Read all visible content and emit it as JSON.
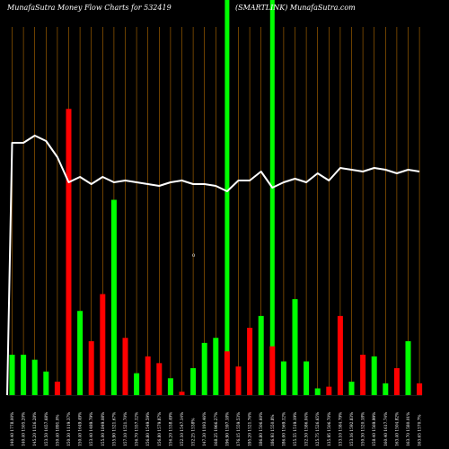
{
  "header": {
    "left": "MunafaSutra  Money Flow  Charts for 532419",
    "right": "(SMARTLINK) MunafaSutra.com"
  },
  "mid_label": "0",
  "colors": {
    "background": "#000000",
    "up": "#00ff00",
    "down": "#ff0000",
    "grid": "#b36b00",
    "line": "#ffffff",
    "text": "#ffffff"
  },
  "chart_data": {
    "type": "bar",
    "series": [
      {
        "values": [
          24,
          24,
          21,
          14,
          8,
          170,
          50,
          32,
          60,
          116,
          34,
          13,
          23,
          19,
          10,
          2,
          16,
          31,
          34,
          26,
          17,
          40,
          47,
          29,
          20,
          57,
          20,
          4,
          5,
          47,
          8,
          24,
          23,
          7,
          16,
          32,
          7
        ]
      }
    ],
    "signs": [
      "up",
      "up",
      "up",
      "up",
      "down",
      "down",
      "up",
      "down",
      "down",
      "up",
      "down",
      "up",
      "down",
      "down",
      "up",
      "down",
      "up",
      "up",
      "up",
      "down",
      "down",
      "down",
      "up",
      "down",
      "up",
      "up",
      "up",
      "up",
      "down",
      "down",
      "up",
      "down",
      "up",
      "up",
      "down",
      "up",
      "down"
    ],
    "line_values": [
      0.28,
      0.28,
      0.32,
      0.29,
      0.2,
      0.06,
      0.09,
      0.05,
      0.09,
      0.06,
      0.07,
      0.06,
      0.05,
      0.04,
      0.06,
      0.07,
      0.05,
      0.05,
      0.04,
      0.01,
      0.07,
      0.07,
      0.12,
      0.03,
      0.06,
      0.08,
      0.06,
      0.11,
      0.07,
      0.14,
      0.13,
      0.12,
      0.14,
      0.13,
      0.11,
      0.13,
      0.12
    ],
    "tick_labels": [
      "140.40  1778.00%",
      "140.40  1505.20%",
      "145.20  1126.28%",
      "153.50  1657.68%",
      "150.40  1891.0%",
      "150.30  1119.37%",
      "150.40  1649.49%",
      "153.40  1489.79%",
      "155.00  1849.08%",
      "155.90  1521.67%",
      "157.10  1521.70%",
      "156.70  1557.12%",
      "156.80  1549.59%",
      "156.80  1579.87%",
      "156.20  1538.49%",
      "152.10  1547.14%",
      "152.25  1538%",
      "147.30  1193.46%",
      "168.25  1966.27%",
      "196.90  1597.18%",
      "176.15  1559.53%",
      "195.20  1521.76%",
      "186.80  1506.60%",
      "186.93  1550.8%",
      "186.00  1569.12%",
      "155.55  1519.19%",
      "152.50  1586.04%",
      "125.75  1526.65%",
      "135.95  1506.70%",
      "133.10  1584.79%",
      "153.16  1592.83%",
      "150.30  1520.18%",
      "158.40  1569.99%",
      "160.40  1617.74%",
      "163.40  1504.82%",
      "163.70  1580.01%",
      "163.65  1570.7%"
    ],
    "highlight_markers": [
      19,
      23
    ]
  }
}
